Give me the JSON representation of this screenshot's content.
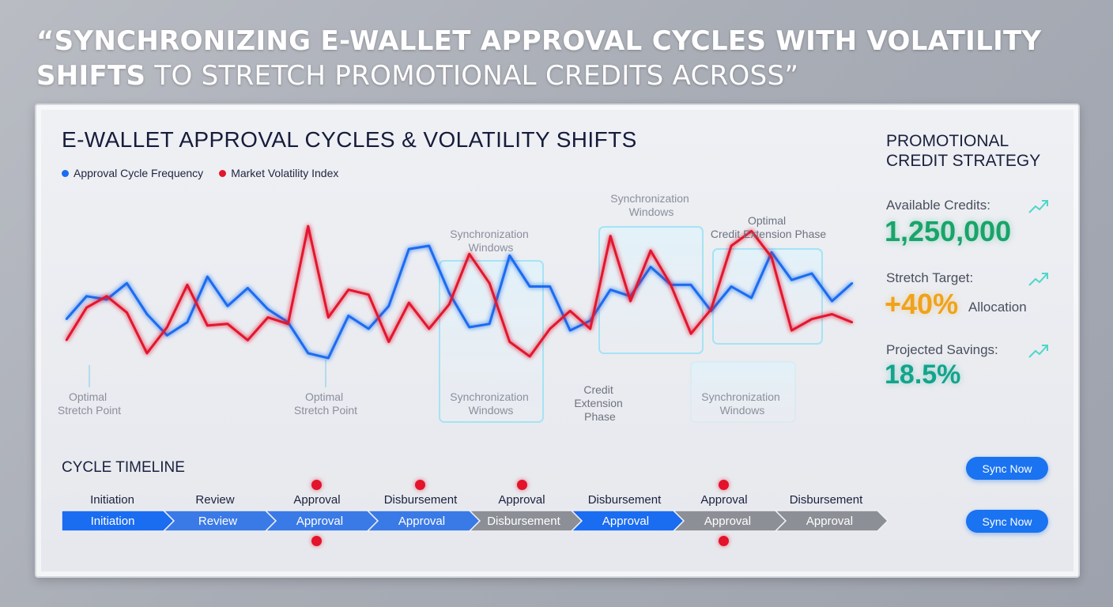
{
  "headline": {
    "bold": "“SYNCHRONIZING E-WALLET APPROVAL CYCLES WITH VOLATILITY SHIFTS",
    "rest": " TO STRETCH PROMOTIONAL CREDITS ACROSS”"
  },
  "chart_data": {
    "type": "line",
    "title": "E-WALLET APPROVAL CYCLES & VOLATILITY SHIFTS",
    "series": [
      {
        "name": "Approval Cycle Frequency",
        "color": "#1a6cf0",
        "values": [
          39,
          53,
          51,
          61,
          42,
          29,
          37,
          65,
          47,
          58,
          45,
          37,
          18,
          15,
          41,
          33,
          47,
          82,
          84,
          55,
          34,
          36,
          78,
          59,
          59,
          32,
          38,
          57,
          53,
          71,
          60,
          60,
          44,
          59,
          52,
          80,
          63,
          67,
          50,
          61
        ]
      },
      {
        "name": "Market Volatility Index",
        "color": "#e3152e",
        "values": [
          26,
          46,
          53,
          43,
          18,
          34,
          60,
          35,
          36,
          26,
          40,
          36,
          96,
          40,
          57,
          54,
          25,
          49,
          33,
          48,
          79,
          61,
          25,
          16,
          33,
          44,
          33,
          90,
          50,
          81,
          60,
          30,
          45,
          84,
          93,
          77,
          32,
          39,
          42,
          37
        ]
      }
    ],
    "ylim": [
      0,
      100
    ],
    "legend": "top-left",
    "grid": false,
    "annotations": [
      {
        "text": [
          "Optimal",
          "Stretch Point"
        ]
      },
      {
        "text": [
          "Optimal",
          "Stretch Point"
        ]
      },
      {
        "text": [
          "Synchronization",
          "Windows"
        ]
      },
      {
        "text": [
          "Synchronization",
          "Windows"
        ]
      },
      {
        "text": [
          "Synchronization",
          "Windows"
        ]
      },
      {
        "text": [
          "Synchronization",
          "Windows"
        ]
      },
      {
        "text": [
          "Optimal",
          "Credit Extension Phase"
        ]
      },
      {
        "text": [
          "Credit",
          "Extension",
          "Phase"
        ]
      }
    ]
  },
  "sidebar": {
    "title_line1": "PROMOTIONAL",
    "title_line2": "CREDIT STRATEGY",
    "metrics": [
      {
        "label": "Available Credits:",
        "value": "1,250,000",
        "color": "#18a46a"
      },
      {
        "label": "Stretch Target:",
        "value": "+40%",
        "suffix": "Allocation",
        "color": "#f0a21a"
      },
      {
        "label": "Projected Savings:",
        "value": "18.5%",
        "color": "#12a48c"
      }
    ],
    "trend_icon": "trend-up-icon"
  },
  "timeline": {
    "title": "CYCLE TIMELINE",
    "top_labels": [
      "Initiation",
      "Review",
      "Approval",
      "Disbursement",
      "Approval",
      "Disbursement",
      "Approval",
      "Disbursement"
    ],
    "steps": [
      {
        "label": "Initiation",
        "color": "#1a6cf0"
      },
      {
        "label": "Review",
        "color": "#3a7ae6"
      },
      {
        "label": "Approval",
        "color": "#3a7ae6"
      },
      {
        "label": "Approval",
        "color": "#3a7ae6"
      },
      {
        "label": "Disbursement",
        "color": "#8c8f96"
      },
      {
        "label": "Approval",
        "color": "#1a6cf0"
      },
      {
        "label": "Approval",
        "color": "#8c8f96"
      },
      {
        "label": "Approval",
        "color": "#8c8f96"
      }
    ],
    "sync_button_top": "Sync Now",
    "sync_button_bottom": "Sync Now"
  }
}
